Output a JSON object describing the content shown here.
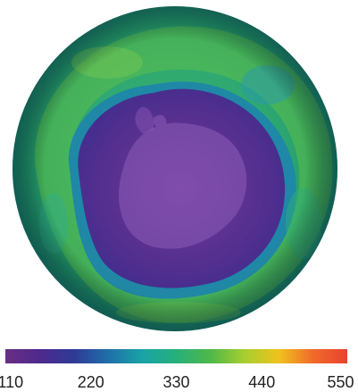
{
  "map": {
    "subject": "southern-hemisphere-ozone-column",
    "palette": [
      "#6a2e84",
      "#4d2a8c",
      "#2f3a96",
      "#1f6fa8",
      "#19a3a6",
      "#27b07a",
      "#4fb84a",
      "#a7cf2f",
      "#f0c21e",
      "#f06a2a",
      "#e8432e"
    ]
  },
  "scale": {
    "min": 110,
    "max": 550,
    "ticks": [
      "110",
      "220",
      "330",
      "440",
      "550"
    ]
  }
}
